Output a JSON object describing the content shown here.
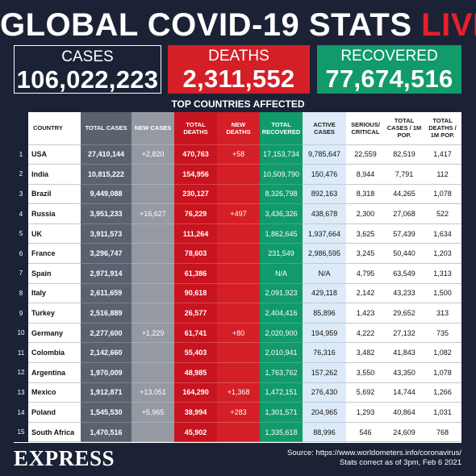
{
  "header": {
    "title_main": "GLOBAL COVID-19 STATS",
    "title_live": "LIVE"
  },
  "totals": {
    "cases_label": "CASES",
    "cases_value": "106,022,223",
    "deaths_label": "DEATHS",
    "deaths_value": "2,311,552",
    "recovered_label": "RECOVERED",
    "recovered_value": "77,674,516"
  },
  "subtitle": "TOP COUNTRIES AFFECTED",
  "colors": {
    "background": "#1c2235",
    "cases": "#5a6270",
    "new_cases": "#959aa2",
    "deaths": "#c8141f",
    "new_deaths": "#d51f27",
    "recovered": "#119a6a",
    "active": "#dcebf7"
  },
  "chart_data": {
    "type": "table",
    "columns": [
      "",
      "COUNTRY",
      "TOTAL CASES",
      "NEW CASES",
      "TOTAL DEATHS",
      "NEW DEATHS",
      "TOTAL RECOVERED",
      "ACTIVE CASES",
      "SERIOUS/ CRITICAL",
      "TOTAL CASES / 1M POP.",
      "TOTAL DEATHS / 1M POP."
    ],
    "rows": [
      [
        "1",
        "USA",
        "27,410,144",
        "+2,820",
        "470,763",
        "+58",
        "17,153,734",
        "9,785,647",
        "22,559",
        "82,519",
        "1,417"
      ],
      [
        "2",
        "India",
        "10,815,222",
        "",
        "154,956",
        "",
        "10,509,790",
        "150,476",
        "8,944",
        "7,791",
        "112"
      ],
      [
        "3",
        "Brazil",
        "9,449,088",
        "",
        "230,127",
        "",
        "8,326,798",
        "892,163",
        "8,318",
        "44,265",
        "1,078"
      ],
      [
        "4",
        "Russia",
        "3,951,233",
        "+16,627",
        "76,229",
        "+497",
        "3,436,326",
        "438,678",
        "2,300",
        "27,068",
        "522"
      ],
      [
        "5",
        "UK",
        "3,911,573",
        "",
        "111,264",
        "",
        "1,862,645",
        "1,937,664",
        "3,625",
        "57,439",
        "1,634"
      ],
      [
        "6",
        "France",
        "3,296,747",
        "",
        "78,603",
        "",
        "231,549",
        "2,986,595",
        "3,245",
        "50,440",
        "1,203"
      ],
      [
        "7",
        "Spain",
        "2,971,914",
        "",
        "61,386",
        "",
        "N/A",
        "N/A",
        "4,795",
        "63,549",
        "1,313"
      ],
      [
        "8",
        "Italy",
        "2,611,659",
        "",
        "90,618",
        "",
        "2,091,923",
        "429,118",
        "2,142",
        "43,233",
        "1,500"
      ],
      [
        "9",
        "Turkey",
        "2,516,889",
        "",
        "26,577",
        "",
        "2,404,416",
        "85,896",
        "1,423",
        "29,652",
        "313"
      ],
      [
        "10",
        "Germany",
        "2,277,600",
        "+1,229",
        "61,741",
        "+80",
        "2,020,900",
        "194,959",
        "4,222",
        "27,132",
        "735"
      ],
      [
        "11",
        "Colombia",
        "2,142,660",
        "",
        "55,403",
        "",
        "2,010,941",
        "76,316",
        "3,482",
        "41,843",
        "1,082"
      ],
      [
        "12",
        "Argentina",
        "1,970,009",
        "",
        "48,985",
        "",
        "1,763,762",
        "157,262",
        "3,550",
        "43,350",
        "1,078"
      ],
      [
        "13",
        "Mexico",
        "1,912,871",
        "+13,051",
        "164,290",
        "+1,368",
        "1,472,151",
        "276,430",
        "5,692",
        "14,744",
        "1,266"
      ],
      [
        "14",
        "Poland",
        "1,545,530",
        "+5,965",
        "38,994",
        "+283",
        "1,301,571",
        "204,965",
        "1,293",
        "40,864",
        "1,031"
      ],
      [
        "15",
        "South Africa",
        "1,470,516",
        "",
        "45,902",
        "",
        "1,335,618",
        "88,996",
        "546",
        "24,609",
        "768"
      ]
    ]
  },
  "footer": {
    "logo": "EXPRESS",
    "source_line1": "Source: https://www.worldometers.info/coronavirus/",
    "source_line2": "Stats correct as of 3pm, Feb 6 2021"
  }
}
